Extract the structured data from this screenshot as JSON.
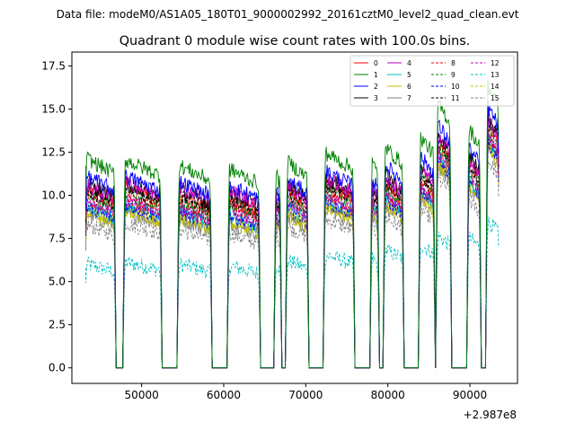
{
  "header": {
    "data_file_line": "Data file: modeM0/AS1A05_180T01_9000002992_20161cztM0_level2_quad_clean.evt"
  },
  "chart_data": {
    "type": "line",
    "title": "Quadrant 0 module wise count rates with 100.0s bins.",
    "xlabel": "",
    "ylabel": "",
    "x_offset_label": "+2.987e8",
    "xlim": [
      41500,
      95800
    ],
    "ylim": [
      -0.9,
      18.3
    ],
    "x_ticks": [
      50000,
      60000,
      70000,
      80000,
      90000
    ],
    "x_tick_labels": [
      "50000",
      "60000",
      "70000",
      "80000",
      "90000"
    ],
    "y_ticks": [
      0.0,
      2.5,
      5.0,
      7.5,
      10.0,
      12.5,
      15.0,
      17.5
    ],
    "y_tick_labels": [
      "0.0",
      "2.5",
      "5.0",
      "7.5",
      "10.0",
      "12.5",
      "15.0",
      "17.5"
    ],
    "legend_position": "top-right",
    "segments": [
      [
        43200,
        46700
      ],
      [
        47900,
        52300
      ],
      [
        54500,
        58400
      ],
      [
        60600,
        64300
      ],
      [
        66300,
        66900
      ],
      [
        67700,
        70200
      ],
      [
        72300,
        75800
      ],
      [
        78000,
        78800
      ],
      [
        79600,
        81800
      ],
      [
        83900,
        85600
      ],
      [
        86000,
        87600
      ],
      [
        89800,
        91200
      ],
      [
        92100,
        93500
      ]
    ],
    "series": [
      {
        "name": "0",
        "color": "#ff0000",
        "style": "solid",
        "values": [
          10.0,
          10.1,
          9.6,
          9.4,
          9.6,
          9.9,
          10.2,
          10.0,
          10.3,
          10.6,
          12.6,
          11.6,
          13.6
        ]
      },
      {
        "name": "1",
        "color": "#008000",
        "style": "solid",
        "values": [
          11.7,
          11.6,
          11.3,
          11.1,
          11.0,
          11.5,
          12.0,
          11.6,
          12.3,
          12.9,
          14.8,
          13.4,
          15.8
        ]
      },
      {
        "name": "2",
        "color": "#0000ff",
        "style": "solid",
        "values": [
          10.7,
          10.7,
          10.4,
          10.2,
          10.2,
          10.5,
          11.0,
          10.7,
          11.3,
          11.8,
          13.6,
          12.3,
          14.6
        ]
      },
      {
        "name": "3",
        "color": "#000000",
        "style": "solid",
        "values": [
          10.3,
          10.3,
          9.9,
          9.8,
          9.9,
          10.2,
          10.6,
          10.3,
          10.8,
          11.2,
          13.1,
          11.9,
          14.1
        ]
      },
      {
        "name": "4",
        "color": "#bf00bf",
        "style": "solid",
        "values": [
          10.2,
          10.4,
          10.1,
          9.9,
          9.8,
          10.1,
          10.6,
          10.2,
          10.6,
          11.1,
          12.9,
          11.6,
          13.9
        ]
      },
      {
        "name": "5",
        "color": "#00bfbf",
        "style": "solid",
        "values": [
          9.1,
          9.2,
          8.8,
          8.6,
          8.7,
          9.0,
          9.4,
          9.1,
          9.6,
          10.0,
          11.9,
          10.6,
          12.9
        ]
      },
      {
        "name": "6",
        "color": "#bfbf00",
        "style": "solid",
        "values": [
          8.8,
          8.9,
          8.4,
          8.2,
          8.3,
          8.6,
          9.1,
          8.8,
          9.2,
          9.7,
          11.5,
          10.3,
          12.5
        ]
      },
      {
        "name": "7",
        "color": "#808080",
        "style": "solid",
        "values": [
          8.6,
          8.7,
          8.3,
          8.1,
          8.2,
          8.5,
          8.9,
          8.6,
          9.0,
          9.5,
          11.3,
          10.1,
          12.3
        ]
      },
      {
        "name": "8",
        "color": "#ff0000",
        "style": "dashed",
        "values": [
          9.4,
          9.5,
          9.0,
          8.9,
          9.0,
          9.3,
          9.7,
          9.4,
          9.8,
          10.3,
          12.1,
          10.9,
          13.1
        ]
      },
      {
        "name": "9",
        "color": "#008000",
        "style": "dashed",
        "values": [
          9.7,
          9.8,
          9.3,
          9.2,
          9.3,
          9.6,
          10.0,
          9.7,
          10.1,
          10.6,
          12.4,
          11.2,
          13.4
        ]
      },
      {
        "name": "10",
        "color": "#0000ff",
        "style": "dashed",
        "values": [
          9.0,
          9.1,
          8.7,
          8.5,
          8.6,
          8.9,
          9.3,
          9.0,
          9.4,
          9.9,
          11.7,
          10.5,
          12.7
        ]
      },
      {
        "name": "11",
        "color": "#000000",
        "style": "dashed",
        "values": [
          9.9,
          10.0,
          9.6,
          9.4,
          9.5,
          9.8,
          10.2,
          9.9,
          10.4,
          10.8,
          12.7,
          11.4,
          13.7
        ]
      },
      {
        "name": "12",
        "color": "#bf00bf",
        "style": "dashed",
        "values": [
          9.3,
          9.4,
          8.9,
          8.8,
          8.9,
          9.2,
          9.6,
          9.3,
          9.7,
          10.2,
          12.0,
          10.8,
          13.0
        ]
      },
      {
        "name": "13",
        "color": "#00bfbf",
        "style": "dashed",
        "values": [
          5.8,
          5.9,
          5.8,
          5.7,
          5.9,
          6.0,
          6.3,
          6.2,
          6.6,
          6.9,
          7.4,
          7.3,
          8.2
        ]
      },
      {
        "name": "14",
        "color": "#bfbf00",
        "style": "dashed",
        "values": [
          8.7,
          8.8,
          8.4,
          8.2,
          8.3,
          8.6,
          9.0,
          8.7,
          9.1,
          9.6,
          11.4,
          10.2,
          12.4
        ]
      },
      {
        "name": "15",
        "color": "#808080",
        "style": "dashed",
        "values": [
          8.0,
          8.1,
          7.7,
          7.5,
          7.6,
          7.9,
          8.3,
          8.0,
          8.4,
          8.9,
          10.6,
          9.4,
          11.6
        ]
      }
    ]
  }
}
